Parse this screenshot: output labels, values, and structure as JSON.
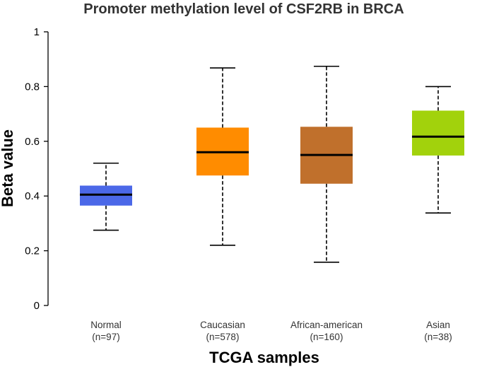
{
  "chart_data": {
    "type": "box",
    "title": "Promoter methylation level of CSF2RB in BRCA",
    "xlabel": "TCGA samples",
    "ylabel": "Beta value",
    "ylim": [
      0,
      1
    ],
    "yticks": [
      0,
      0.2,
      0.4,
      0.6,
      0.8,
      1
    ],
    "ytick_labels": [
      "0",
      "0.2",
      "0.4",
      "0.6",
      "0.8",
      "1"
    ],
    "categories": [
      {
        "name": "Normal",
        "n_label": "(n=97)",
        "color": "#4b68e8",
        "whisker_low": 0.275,
        "q1": 0.365,
        "median": 0.405,
        "q3": 0.438,
        "whisker_high": 0.52
      },
      {
        "name": "Caucasian",
        "n_label": "(n=578)",
        "color": "#ff8c00",
        "whisker_low": 0.22,
        "q1": 0.475,
        "median": 0.56,
        "q3": 0.65,
        "whisker_high": 0.868
      },
      {
        "name": "African-american",
        "n_label": "(n=160)",
        "color": "#c0702c",
        "whisker_low": 0.158,
        "q1": 0.445,
        "median": 0.55,
        "q3": 0.653,
        "whisker_high": 0.874
      },
      {
        "name": "Asian",
        "n_label": "(n=38)",
        "color": "#a2d20c",
        "whisker_low": 0.338,
        "q1": 0.548,
        "median": 0.617,
        "q3": 0.712,
        "whisker_high": 0.8
      }
    ]
  }
}
